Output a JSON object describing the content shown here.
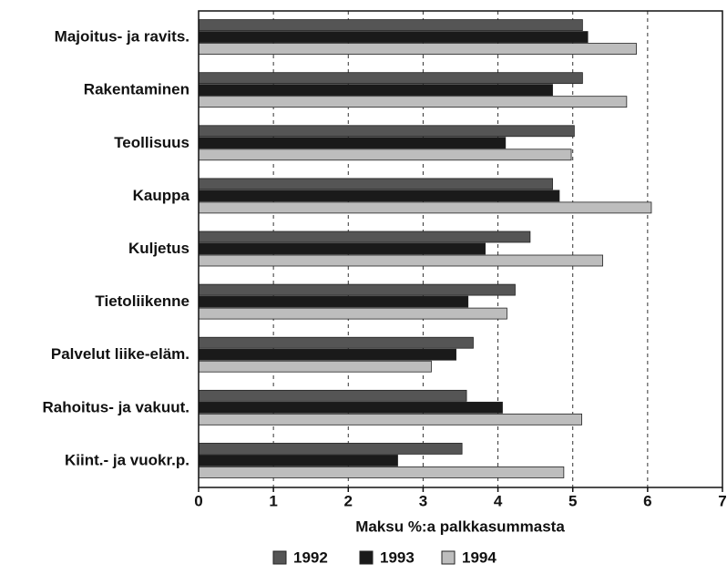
{
  "chart_data": {
    "type": "hbar",
    "xlabel": "Maksu %:a palkkasummasta",
    "categories": [
      "Majoitus- ja ravits.",
      "Rakentaminen",
      "Teollisuus",
      "Kauppa",
      "Kuljetus",
      "Tietoliikenne",
      "Palvelut liike-eläm.",
      "Rahoitus- ja vakuut.",
      "Kiint.- ja vuokr.p."
    ],
    "series": [
      {
        "name": "1992",
        "color": "#555555",
        "values": [
          5.13,
          5.13,
          5.02,
          4.73,
          4.43,
          4.23,
          3.67,
          3.58,
          3.52
        ]
      },
      {
        "name": "1993",
        "color": "#1a1a1a",
        "values": [
          5.2,
          4.73,
          4.1,
          4.82,
          3.83,
          3.6,
          3.44,
          4.06,
          2.66
        ]
      },
      {
        "name": "1994",
        "color": "#bdbdbd",
        "values": [
          5.85,
          5.72,
          4.98,
          6.05,
          5.4,
          4.12,
          3.11,
          5.12,
          4.88
        ]
      }
    ],
    "xlim": [
      0,
      7
    ],
    "xticks": [
      0,
      1,
      2,
      3,
      4,
      5,
      6,
      7
    ],
    "grid": true,
    "legend": "bottom"
  }
}
